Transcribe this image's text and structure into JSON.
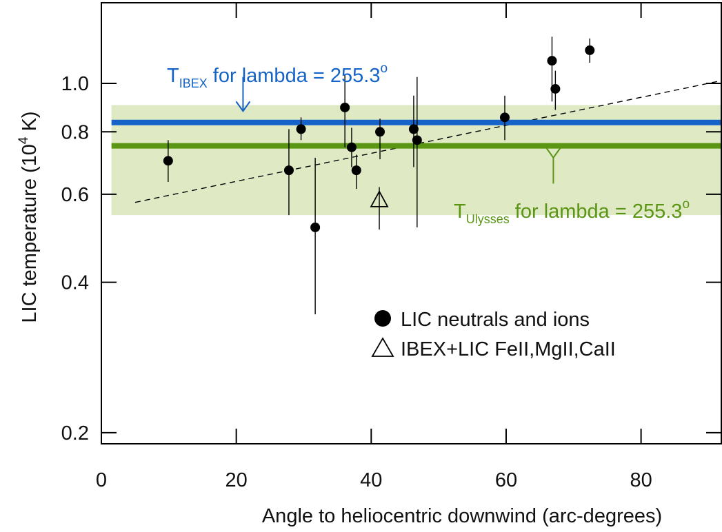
{
  "chart_data": {
    "type": "scatter",
    "xlabel": "Angle to heliocentric downwind (arc-degrees)",
    "ylabel": {
      "main": "LIC temperature (10",
      "sup": "4",
      "tail": " K)"
    },
    "xlim": [
      0,
      92
    ],
    "ylim": [
      0.19,
      1.45
    ],
    "yscale": "log",
    "xticks": [
      {
        "value": 0,
        "label": "0"
      },
      {
        "value": 20,
        "label": "20"
      },
      {
        "value": 40,
        "label": "40"
      },
      {
        "value": 60,
        "label": "60"
      },
      {
        "value": 80,
        "label": "80"
      }
    ],
    "yticks": [
      {
        "value": 0.2,
        "label": "0.2"
      },
      {
        "value": 0.4,
        "label": "0.4"
      },
      {
        "value": 0.6,
        "label": "0.6"
      },
      {
        "value": 0.8,
        "label": "0.8"
      },
      {
        "value": 1.0,
        "label": "1.0"
      }
    ],
    "band": {
      "y0": 0.545,
      "y1": 0.905,
      "x0": 1.5,
      "x1": 92,
      "color": "#dfe9c4"
    },
    "hlines": [
      {
        "key": "ibex",
        "y": 0.835,
        "x0": 1.5,
        "x1": 92,
        "color": "#1563c8"
      },
      {
        "key": "ulysses",
        "y": 0.75,
        "x0": 1.5,
        "x1": 92,
        "color": "#5a9614"
      }
    ],
    "trendline": {
      "x": [
        5,
        91.5
      ],
      "y": [
        0.578,
        1.01
      ],
      "style": "dashed"
    },
    "series": [
      {
        "name": "LIC neutrals and ions",
        "marker": "filled-circle",
        "points": [
          {
            "x": 9.9,
            "y": 0.7,
            "ylo": 0.635,
            "yhi": 0.77
          },
          {
            "x": 27.8,
            "y": 0.67,
            "ylo": 0.545,
            "yhi": 0.81
          },
          {
            "x": 29.6,
            "y": 0.81,
            "ylo": 0.77,
            "yhi": 0.855
          },
          {
            "x": 31.7,
            "y": 0.515,
            "ylo": 0.345,
            "yhi": 0.71
          },
          {
            "x": 36.1,
            "y": 0.895,
            "ylo": 0.745,
            "yhi": 1.04
          },
          {
            "x": 37.1,
            "y": 0.745,
            "ylo": 0.68,
            "yhi": 0.815
          },
          {
            "x": 37.8,
            "y": 0.67,
            "ylo": 0.615,
            "yhi": 0.72
          },
          {
            "x": 41.3,
            "y": 0.8,
            "ylo": 0.705,
            "yhi": 0.85
          },
          {
            "x": 46.3,
            "y": 0.81,
            "ylo": 0.68,
            "yhi": 0.945
          },
          {
            "x": 46.8,
            "y": 0.77,
            "ylo": 0.515,
            "yhi": 1.03
          },
          {
            "x": 59.8,
            "y": 0.855,
            "ylo": 0.77,
            "yhi": 0.945
          },
          {
            "x": 66.8,
            "y": 1.11,
            "ylo": 0.92,
            "yhi": 1.24
          },
          {
            "x": 67.3,
            "y": 0.975,
            "ylo": 0.885,
            "yhi": 1.06
          },
          {
            "x": 72.4,
            "y": 1.165,
            "ylo": 1.1,
            "yhi": 1.23
          }
        ]
      },
      {
        "name": "IBEX+LIC FeII,MgII,CaII",
        "marker": "open-triangle",
        "points": [
          {
            "x": 41.2,
            "y": 0.585,
            "ylo": 0.51,
            "yhi": 0.62
          }
        ]
      }
    ],
    "annotations": [
      {
        "key": "ibex",
        "base": "T",
        "sub": "IBEX",
        "text": " for lambda = 255.3",
        "sup": "o",
        "color": "#1563c8",
        "arrow": {
          "x": 21,
          "y_from": 1.03,
          "y_to": 0.88,
          "direction": "down"
        }
      },
      {
        "key": "ulysses",
        "base": "T",
        "sub": "Ulysses",
        "text": " for lambda = 255.3",
        "sup": "o",
        "color": "#5a9614",
        "arrow": {
          "x": 67,
          "y_from": 0.63,
          "y_to": 0.71,
          "direction": "up"
        }
      }
    ]
  }
}
